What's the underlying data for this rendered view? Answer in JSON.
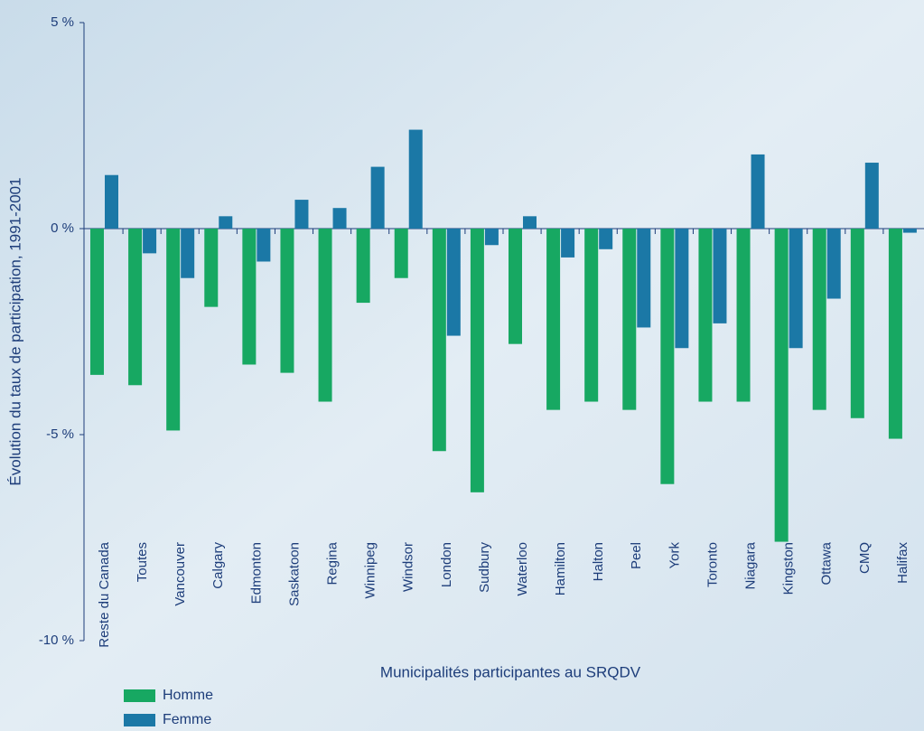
{
  "chart_data": {
    "type": "bar",
    "y_label": "Évolution du taux de participation, 1991-2001",
    "x_label": "Municipalités participantes au SRQDV",
    "categories": [
      "Reste du Canada",
      "Toutes",
      "Vancouver",
      "Calgary",
      "Edmonton",
      "Saskatoon",
      "Regina",
      "Winnipeg",
      "Windsor",
      "London",
      "Sudbury",
      "Waterloo",
      "Hamilton",
      "Halton",
      "Peel",
      "York",
      "Toronto",
      "Niagara",
      "Kingston",
      "Ottawa",
      "CMQ",
      "Halifax"
    ],
    "series": [
      {
        "name": "Homme",
        "color": "#17a862",
        "values": [
          -3.55,
          -3.8,
          -4.9,
          -1.9,
          -3.3,
          -3.5,
          -4.2,
          -1.8,
          -1.2,
          -5.4,
          -6.4,
          -2.8,
          -4.4,
          -4.2,
          -4.4,
          -6.2,
          -4.2,
          -4.2,
          -7.6,
          -4.4,
          -4.6,
          -5.1
        ]
      },
      {
        "name": "Femme",
        "color": "#1b78a6",
        "values": [
          1.3,
          -0.6,
          -1.2,
          0.3,
          -0.8,
          0.7,
          0.5,
          1.5,
          2.4,
          -2.6,
          -0.4,
          0.3,
          -0.7,
          -0.5,
          -2.4,
          -2.9,
          -2.3,
          1.8,
          -2.9,
          -1.7,
          1.6,
          -0.1
        ]
      }
    ],
    "ylim": [
      -10,
      5
    ],
    "yticks": [
      {
        "value": 5,
        "label": "5 %"
      },
      {
        "value": 0,
        "label": "0 %"
      },
      {
        "value": -5,
        "label": "-5 %"
      },
      {
        "value": -10,
        "label": "-10 %"
      }
    ],
    "legend": "bottom-left"
  }
}
